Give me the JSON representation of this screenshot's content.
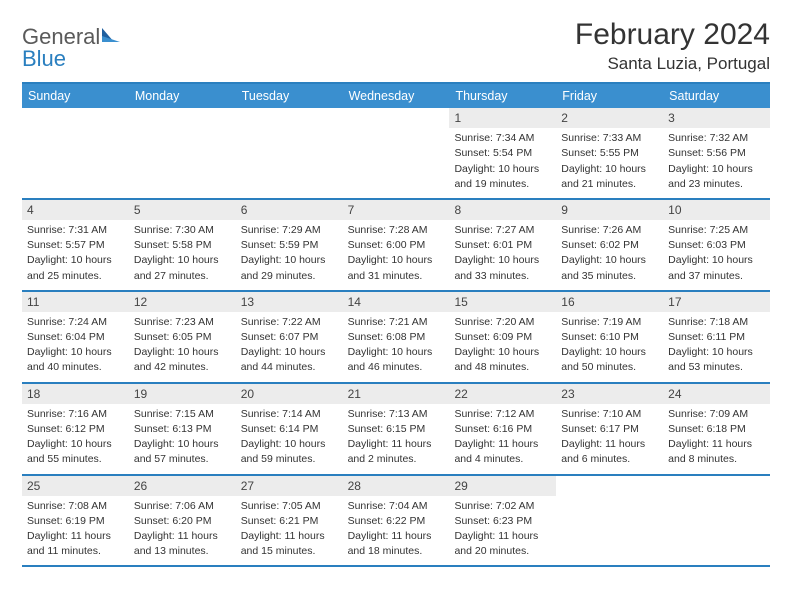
{
  "logo": {
    "word1": "General",
    "word2": "Blue"
  },
  "header": {
    "title": "February 2024",
    "location": "Santa Luzia, Portugal"
  },
  "colors": {
    "header_bar": "#3a8fcf",
    "border": "#2a7fbf",
    "daynum_bg": "#ececec",
    "background": "#ffffff",
    "text": "#333333"
  },
  "dow": [
    "Sunday",
    "Monday",
    "Tuesday",
    "Wednesday",
    "Thursday",
    "Friday",
    "Saturday"
  ],
  "weeks": [
    [
      null,
      null,
      null,
      null,
      {
        "n": "1",
        "sr": "Sunrise: 7:34 AM",
        "ss": "Sunset: 5:54 PM",
        "d1": "Daylight: 10 hours",
        "d2": "and 19 minutes."
      },
      {
        "n": "2",
        "sr": "Sunrise: 7:33 AM",
        "ss": "Sunset: 5:55 PM",
        "d1": "Daylight: 10 hours",
        "d2": "and 21 minutes."
      },
      {
        "n": "3",
        "sr": "Sunrise: 7:32 AM",
        "ss": "Sunset: 5:56 PM",
        "d1": "Daylight: 10 hours",
        "d2": "and 23 minutes."
      }
    ],
    [
      {
        "n": "4",
        "sr": "Sunrise: 7:31 AM",
        "ss": "Sunset: 5:57 PM",
        "d1": "Daylight: 10 hours",
        "d2": "and 25 minutes."
      },
      {
        "n": "5",
        "sr": "Sunrise: 7:30 AM",
        "ss": "Sunset: 5:58 PM",
        "d1": "Daylight: 10 hours",
        "d2": "and 27 minutes."
      },
      {
        "n": "6",
        "sr": "Sunrise: 7:29 AM",
        "ss": "Sunset: 5:59 PM",
        "d1": "Daylight: 10 hours",
        "d2": "and 29 minutes."
      },
      {
        "n": "7",
        "sr": "Sunrise: 7:28 AM",
        "ss": "Sunset: 6:00 PM",
        "d1": "Daylight: 10 hours",
        "d2": "and 31 minutes."
      },
      {
        "n": "8",
        "sr": "Sunrise: 7:27 AM",
        "ss": "Sunset: 6:01 PM",
        "d1": "Daylight: 10 hours",
        "d2": "and 33 minutes."
      },
      {
        "n": "9",
        "sr": "Sunrise: 7:26 AM",
        "ss": "Sunset: 6:02 PM",
        "d1": "Daylight: 10 hours",
        "d2": "and 35 minutes."
      },
      {
        "n": "10",
        "sr": "Sunrise: 7:25 AM",
        "ss": "Sunset: 6:03 PM",
        "d1": "Daylight: 10 hours",
        "d2": "and 37 minutes."
      }
    ],
    [
      {
        "n": "11",
        "sr": "Sunrise: 7:24 AM",
        "ss": "Sunset: 6:04 PM",
        "d1": "Daylight: 10 hours",
        "d2": "and 40 minutes."
      },
      {
        "n": "12",
        "sr": "Sunrise: 7:23 AM",
        "ss": "Sunset: 6:05 PM",
        "d1": "Daylight: 10 hours",
        "d2": "and 42 minutes."
      },
      {
        "n": "13",
        "sr": "Sunrise: 7:22 AM",
        "ss": "Sunset: 6:07 PM",
        "d1": "Daylight: 10 hours",
        "d2": "and 44 minutes."
      },
      {
        "n": "14",
        "sr": "Sunrise: 7:21 AM",
        "ss": "Sunset: 6:08 PM",
        "d1": "Daylight: 10 hours",
        "d2": "and 46 minutes."
      },
      {
        "n": "15",
        "sr": "Sunrise: 7:20 AM",
        "ss": "Sunset: 6:09 PM",
        "d1": "Daylight: 10 hours",
        "d2": "and 48 minutes."
      },
      {
        "n": "16",
        "sr": "Sunrise: 7:19 AM",
        "ss": "Sunset: 6:10 PM",
        "d1": "Daylight: 10 hours",
        "d2": "and 50 minutes."
      },
      {
        "n": "17",
        "sr": "Sunrise: 7:18 AM",
        "ss": "Sunset: 6:11 PM",
        "d1": "Daylight: 10 hours",
        "d2": "and 53 minutes."
      }
    ],
    [
      {
        "n": "18",
        "sr": "Sunrise: 7:16 AM",
        "ss": "Sunset: 6:12 PM",
        "d1": "Daylight: 10 hours",
        "d2": "and 55 minutes."
      },
      {
        "n": "19",
        "sr": "Sunrise: 7:15 AM",
        "ss": "Sunset: 6:13 PM",
        "d1": "Daylight: 10 hours",
        "d2": "and 57 minutes."
      },
      {
        "n": "20",
        "sr": "Sunrise: 7:14 AM",
        "ss": "Sunset: 6:14 PM",
        "d1": "Daylight: 10 hours",
        "d2": "and 59 minutes."
      },
      {
        "n": "21",
        "sr": "Sunrise: 7:13 AM",
        "ss": "Sunset: 6:15 PM",
        "d1": "Daylight: 11 hours",
        "d2": "and 2 minutes."
      },
      {
        "n": "22",
        "sr": "Sunrise: 7:12 AM",
        "ss": "Sunset: 6:16 PM",
        "d1": "Daylight: 11 hours",
        "d2": "and 4 minutes."
      },
      {
        "n": "23",
        "sr": "Sunrise: 7:10 AM",
        "ss": "Sunset: 6:17 PM",
        "d1": "Daylight: 11 hours",
        "d2": "and 6 minutes."
      },
      {
        "n": "24",
        "sr": "Sunrise: 7:09 AM",
        "ss": "Sunset: 6:18 PM",
        "d1": "Daylight: 11 hours",
        "d2": "and 8 minutes."
      }
    ],
    [
      {
        "n": "25",
        "sr": "Sunrise: 7:08 AM",
        "ss": "Sunset: 6:19 PM",
        "d1": "Daylight: 11 hours",
        "d2": "and 11 minutes."
      },
      {
        "n": "26",
        "sr": "Sunrise: 7:06 AM",
        "ss": "Sunset: 6:20 PM",
        "d1": "Daylight: 11 hours",
        "d2": "and 13 minutes."
      },
      {
        "n": "27",
        "sr": "Sunrise: 7:05 AM",
        "ss": "Sunset: 6:21 PM",
        "d1": "Daylight: 11 hours",
        "d2": "and 15 minutes."
      },
      {
        "n": "28",
        "sr": "Sunrise: 7:04 AM",
        "ss": "Sunset: 6:22 PM",
        "d1": "Daylight: 11 hours",
        "d2": "and 18 minutes."
      },
      {
        "n": "29",
        "sr": "Sunrise: 7:02 AM",
        "ss": "Sunset: 6:23 PM",
        "d1": "Daylight: 11 hours",
        "d2": "and 20 minutes."
      },
      null,
      null
    ]
  ]
}
